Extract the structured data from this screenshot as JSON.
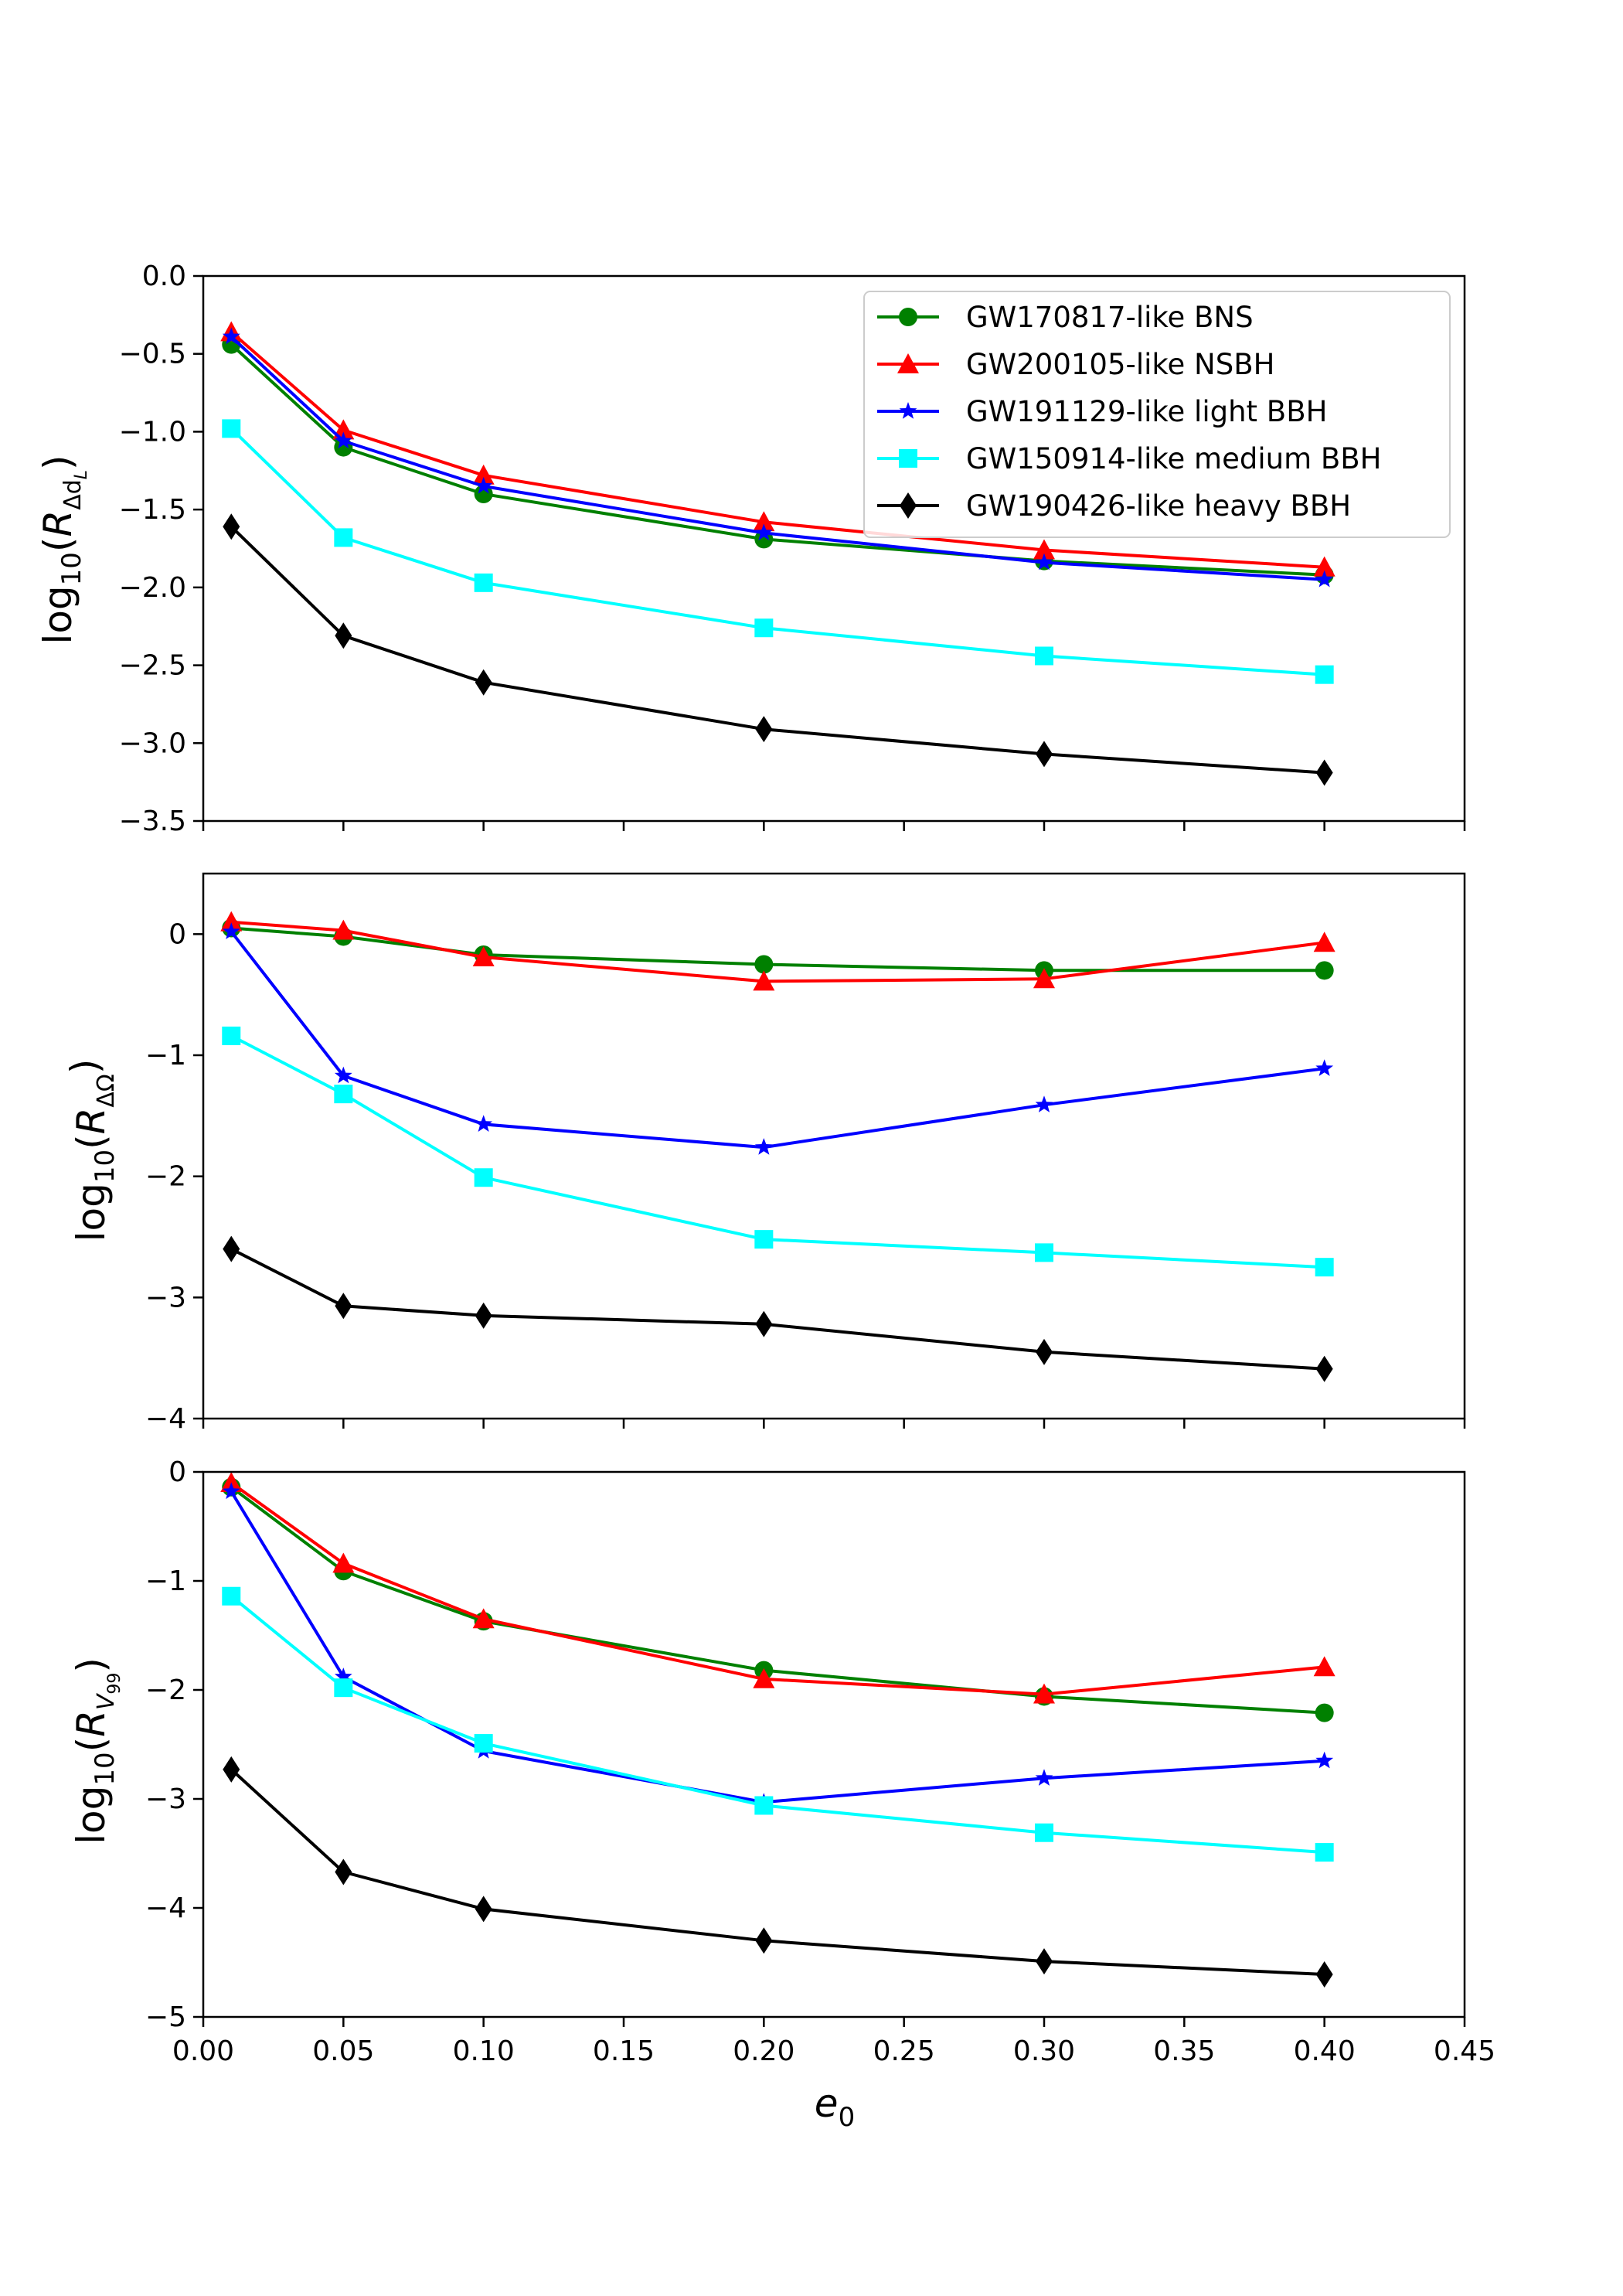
{
  "chart_data": [
    {
      "type": "line",
      "x": [
        0.01,
        0.05,
        0.1,
        0.2,
        0.3,
        0.4
      ],
      "xlim": [
        0.0,
        0.45
      ],
      "ylim": [
        -3.5,
        0.0
      ],
      "yticks": [
        0.0,
        -0.5,
        -1.0,
        -1.5,
        -2.0,
        -2.5,
        -3.0,
        -3.5
      ],
      "ytick_labels": [
        "0.0",
        "−0.5",
        "−1.0",
        "−1.5",
        "−2.0",
        "−2.5",
        "−3.0",
        "−3.5"
      ],
      "ylabel": {
        "base": "log",
        "sub": "10",
        "open": "(",
        "var": "R",
        "sub2": "Δd",
        "sub3": "L",
        "close": ")"
      },
      "legend": "top-right",
      "series": [
        {
          "name": "GW170817-like BNS",
          "color": "#008000",
          "marker": "circle",
          "values": [
            -0.44,
            -1.1,
            -1.4,
            -1.69,
            -1.83,
            -1.92
          ]
        },
        {
          "name": "GW200105-like NSBH",
          "color": "#ff0000",
          "marker": "triangle",
          "values": [
            -0.36,
            -0.99,
            -1.28,
            -1.58,
            -1.76,
            -1.87
          ]
        },
        {
          "name": "GW191129-like light BBH",
          "color": "#0000ff",
          "marker": "star",
          "values": [
            -0.39,
            -1.06,
            -1.35,
            -1.65,
            -1.84,
            -1.95
          ]
        },
        {
          "name": "GW150914-like medium BBH",
          "color": "#00ffff",
          "marker": "square",
          "values": [
            -0.98,
            -1.68,
            -1.97,
            -2.26,
            -2.44,
            -2.56
          ]
        },
        {
          "name": "GW190426-like heavy BBH",
          "color": "#000000",
          "marker": "diamond",
          "values": [
            -1.61,
            -2.31,
            -2.61,
            -2.91,
            -3.07,
            -3.19
          ]
        }
      ]
    },
    {
      "type": "line",
      "x": [
        0.01,
        0.05,
        0.1,
        0.2,
        0.3,
        0.4
      ],
      "xlim": [
        0.0,
        0.45
      ],
      "ylim": [
        -4.0,
        0.5
      ],
      "yticks": [
        0,
        -1,
        -2,
        -3,
        -4
      ],
      "ytick_labels": [
        "0",
        "−1",
        "−2",
        "−3",
        "−4"
      ],
      "ylabel": {
        "base": "log",
        "sub": "10",
        "open": "(",
        "var": "R",
        "sub2": "ΔΩ",
        "sub3": "",
        "close": ")"
      },
      "series": [
        {
          "name": "GW170817-like BNS",
          "color": "#008000",
          "marker": "circle",
          "values": [
            0.05,
            -0.02,
            -0.17,
            -0.25,
            -0.3,
            -0.3
          ]
        },
        {
          "name": "GW200105-like NSBH",
          "color": "#ff0000",
          "marker": "triangle",
          "values": [
            0.1,
            0.03,
            -0.19,
            -0.39,
            -0.37,
            -0.07
          ]
        },
        {
          "name": "GW191129-like light BBH",
          "color": "#0000ff",
          "marker": "star",
          "values": [
            0.02,
            -1.17,
            -1.57,
            -1.76,
            -1.41,
            -1.11
          ]
        },
        {
          "name": "GW150914-like medium BBH",
          "color": "#00ffff",
          "marker": "square",
          "values": [
            -0.84,
            -1.32,
            -2.01,
            -2.52,
            -2.63,
            -2.75
          ]
        },
        {
          "name": "GW190426-like heavy BBH",
          "color": "#000000",
          "marker": "diamond",
          "values": [
            -2.6,
            -3.07,
            -3.15,
            -3.22,
            -3.45,
            -3.59
          ]
        }
      ]
    },
    {
      "type": "line",
      "x": [
        0.01,
        0.05,
        0.1,
        0.2,
        0.3,
        0.4
      ],
      "xlim": [
        0.0,
        0.45
      ],
      "ylim": [
        -5.0,
        0.0
      ],
      "yticks": [
        0,
        -1,
        -2,
        -3,
        -4,
        -5
      ],
      "ytick_labels": [
        "0",
        "−1",
        "−2",
        "−3",
        "−4",
        "−5"
      ],
      "xticks": [
        0.0,
        0.05,
        0.1,
        0.15,
        0.2,
        0.25,
        0.3,
        0.35,
        0.4,
        0.45
      ],
      "xtick_labels": [
        "0.00",
        "0.05",
        "0.10",
        "0.15",
        "0.20",
        "0.25",
        "0.30",
        "0.35",
        "0.40",
        "0.45"
      ],
      "xlabel": {
        "var": "e",
        "sub": "0"
      },
      "ylabel": {
        "base": "log",
        "sub": "10",
        "open": "(",
        "var": "R",
        "sub2": "V",
        "sub3": "99",
        "close": ")"
      },
      "series": [
        {
          "name": "GW170817-like BNS",
          "color": "#008000",
          "marker": "circle",
          "values": [
            -0.14,
            -0.91,
            -1.37,
            -1.82,
            -2.06,
            -2.21
          ]
        },
        {
          "name": "GW200105-like NSBH",
          "color": "#ff0000",
          "marker": "triangle",
          "values": [
            -0.1,
            -0.84,
            -1.35,
            -1.9,
            -2.04,
            -1.79
          ]
        },
        {
          "name": "GW191129-like light BBH",
          "color": "#0000ff",
          "marker": "star",
          "values": [
            -0.18,
            -1.88,
            -2.56,
            -3.03,
            -2.81,
            -2.65
          ]
        },
        {
          "name": "GW150914-like medium BBH",
          "color": "#00ffff",
          "marker": "square",
          "values": [
            -1.14,
            -1.98,
            -2.49,
            -3.06,
            -3.31,
            -3.49
          ]
        },
        {
          "name": "GW190426-like heavy BBH",
          "color": "#000000",
          "marker": "diamond",
          "values": [
            -2.73,
            -3.67,
            -4.01,
            -4.3,
            -4.49,
            -4.61
          ]
        }
      ]
    }
  ]
}
